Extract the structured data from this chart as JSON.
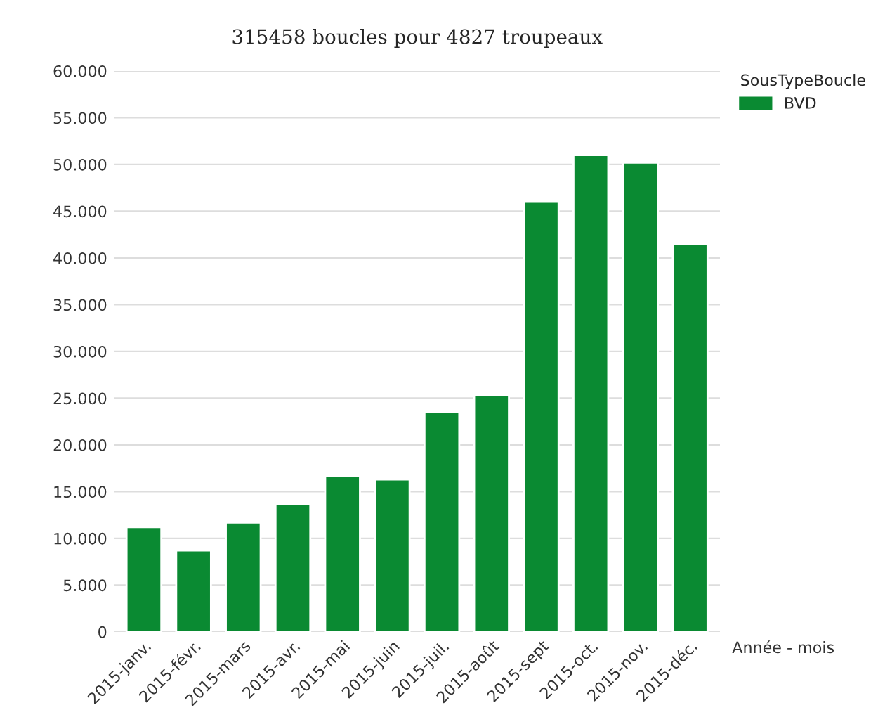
{
  "chart_data": {
    "type": "bar",
    "title": "315458 boucles pour 4827 troupeaux",
    "xlabel": "Année - mois",
    "legend_title": "SousTypeBoucle",
    "categories": [
      "2015-janv.",
      "2015-févr.",
      "2015-mars",
      "2015-avr.",
      "2015-mai",
      "2015-juin",
      "2015-juil.",
      "2015-août",
      "2015-sept",
      "2015-oct.",
      "2015-nov.",
      "2015-déc."
    ],
    "series": [
      {
        "name": "BVD",
        "color": "#0a8a32",
        "values": [
          11200,
          8700,
          11700,
          13700,
          16700,
          16300,
          23500,
          25300,
          46000,
          51000,
          50200,
          41500
        ]
      }
    ],
    "ylim": [
      0,
      60000
    ],
    "yticks": [
      0,
      {
        "value": 5000,
        "label": "5.000"
      },
      {
        "value": 10000,
        "label": "10.000"
      },
      {
        "value": 15000,
        "label": "15.000"
      },
      {
        "value": 20000,
        "label": "20.000"
      },
      {
        "value": 25000,
        "label": "25.000"
      },
      {
        "value": 30000,
        "label": "30.000"
      },
      {
        "value": 35000,
        "label": "35.000"
      },
      {
        "value": 40000,
        "label": "40.000"
      },
      {
        "value": 45000,
        "label": "45.000"
      },
      {
        "value": 50000,
        "label": "50.000"
      },
      {
        "value": 55000,
        "label": "55.000"
      },
      {
        "value": 60000,
        "label": "60.000"
      }
    ],
    "grid": "y",
    "legend": "top right"
  }
}
